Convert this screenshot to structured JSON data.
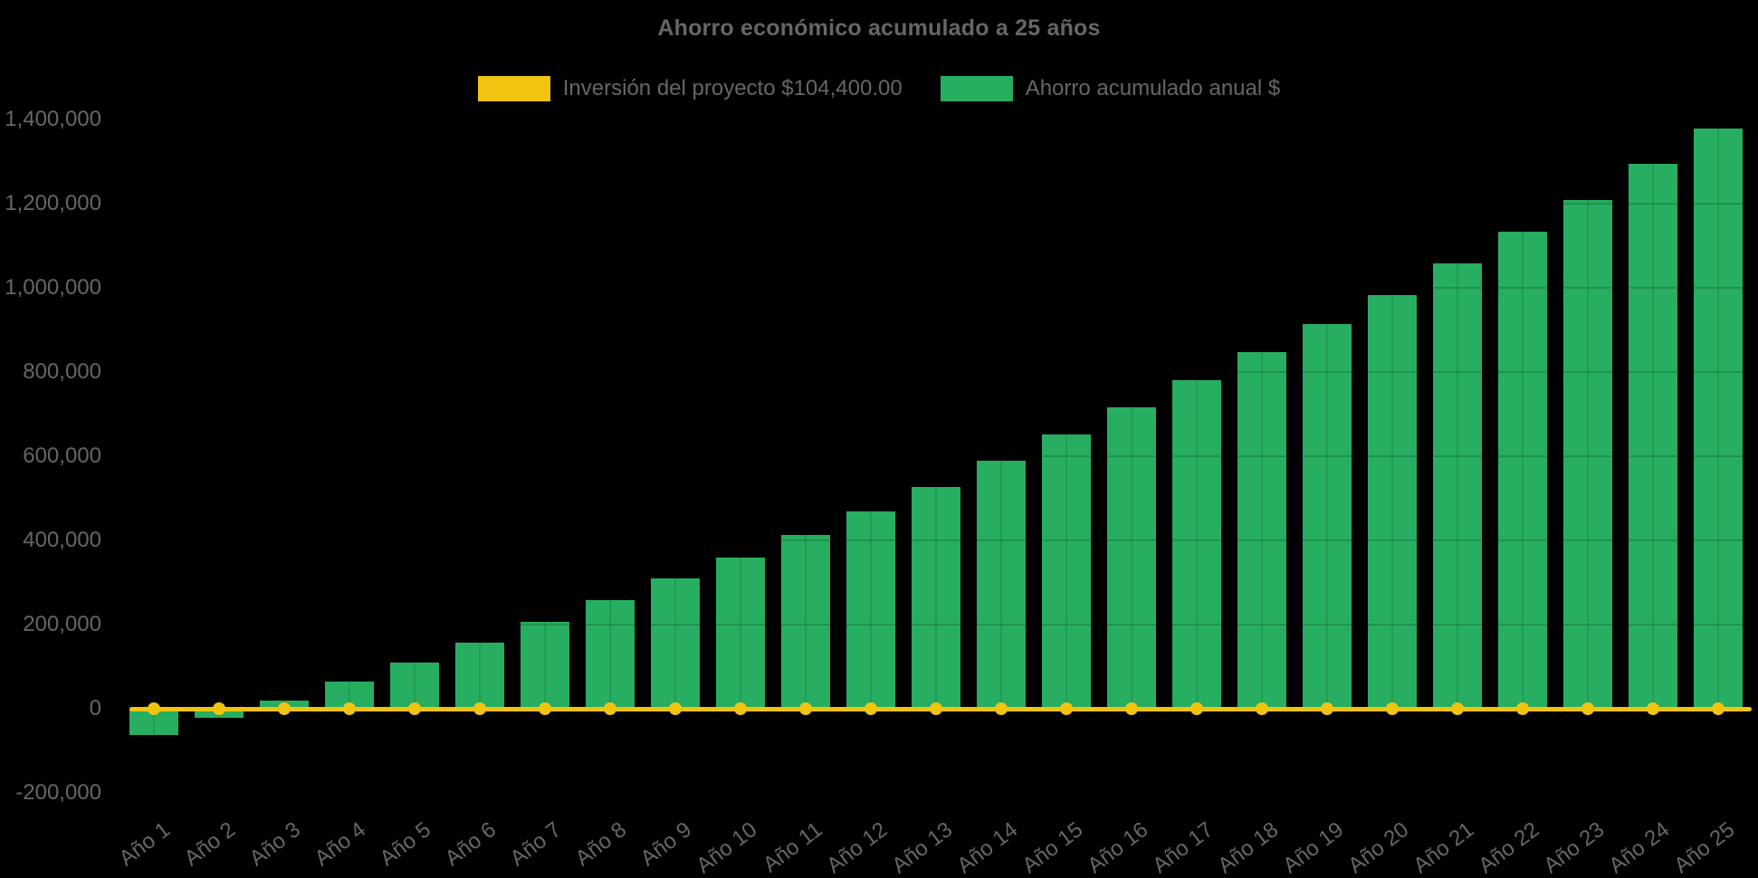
{
  "colors": {
    "background": "#000000",
    "text": "#666666",
    "bar_green": "#27AE60",
    "line_yellow": "#F1C40F"
  },
  "chart_data": {
    "type": "bar",
    "title": "Ahorro económico acumulado a 25 años",
    "legend_position": "top",
    "categories": [
      "Año 1",
      "Año 2",
      "Año 3",
      "Año 4",
      "Año 5",
      "Año 6",
      "Año 7",
      "Año 8",
      "Año 9",
      "Año 10",
      "Año 11",
      "Año 12",
      "Año 13",
      "Año 14",
      "Año 15",
      "Año 16",
      "Año 17",
      "Año 18",
      "Año 19",
      "Año 20",
      "Año 21",
      "Año 22",
      "Año 23",
      "Año 24",
      "Año 25"
    ],
    "series": [
      {
        "name": "Inversión del proyecto $104,400.00",
        "type": "line",
        "color": "#F1C40F",
        "constant_value": 0,
        "note": "flat line with point markers drawn at y = 0"
      },
      {
        "name": "Ahorro acumulado anual $",
        "type": "bar",
        "color": "#27AE60",
        "values": [
          -62000,
          -22000,
          20000,
          65000,
          110000,
          157000,
          206000,
          257000,
          309000,
          359000,
          413000,
          469000,
          526000,
          588000,
          651000,
          715000,
          780000,
          846000,
          914000,
          983000,
          1057000,
          1133000,
          1207000,
          1294000,
          1377000
        ]
      }
    ],
    "ylim": [
      -200000,
      1400000
    ],
    "ytick_step": 200000,
    "ytick_labels": [
      "1,400,000",
      "1,200,000",
      "1,000,000",
      "800,000",
      "600,000",
      "400,000",
      "200,000",
      "0",
      "-200,000"
    ],
    "grid": "faint horizontal+vertical gridlines, visible only where they cross bars",
    "x_label_rotation_deg": -37
  }
}
